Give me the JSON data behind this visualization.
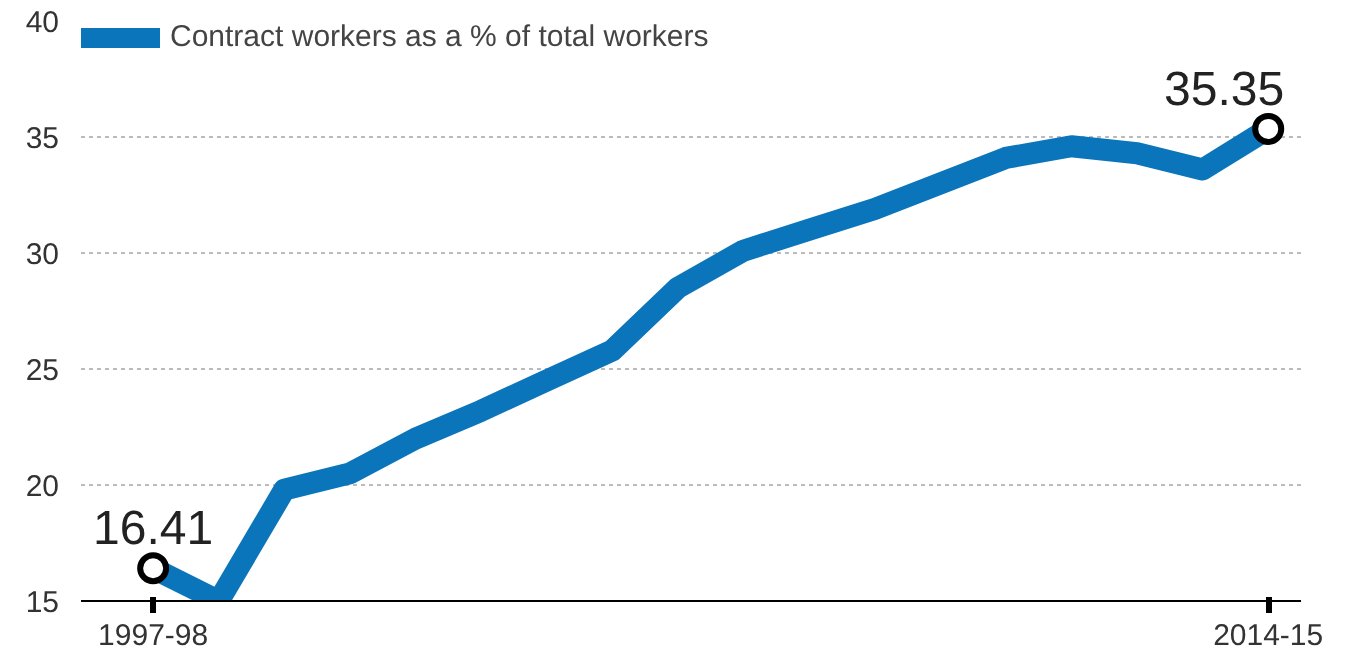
{
  "chart_data": {
    "type": "line",
    "categories": [
      "1997-98",
      null,
      null,
      null,
      null,
      null,
      null,
      null,
      null,
      null,
      null,
      null,
      null,
      null,
      null,
      null,
      null,
      "2014-15"
    ],
    "series": [
      {
        "name": "Contract workers as a % of total workers",
        "color": "#0b75bb",
        "values": [
          16.41,
          15.0,
          19.8,
          20.5,
          22.0,
          23.2,
          24.5,
          25.8,
          28.5,
          30.1,
          31.0,
          31.9,
          33.0,
          34.1,
          34.6,
          34.3,
          33.6,
          35.35
        ]
      }
    ],
    "ylim": [
      15,
      40
    ],
    "yticks": [
      15,
      20,
      25,
      30,
      35,
      40
    ],
    "grid": "y",
    "legend": "top left",
    "marker": "none",
    "line_style": "solid",
    "annotations": [
      {
        "text": "16.41",
        "x": "1997-98",
        "y": 16.41
      },
      {
        "text": "35.35",
        "x": "2014-15",
        "y": 35.35
      }
    ]
  }
}
